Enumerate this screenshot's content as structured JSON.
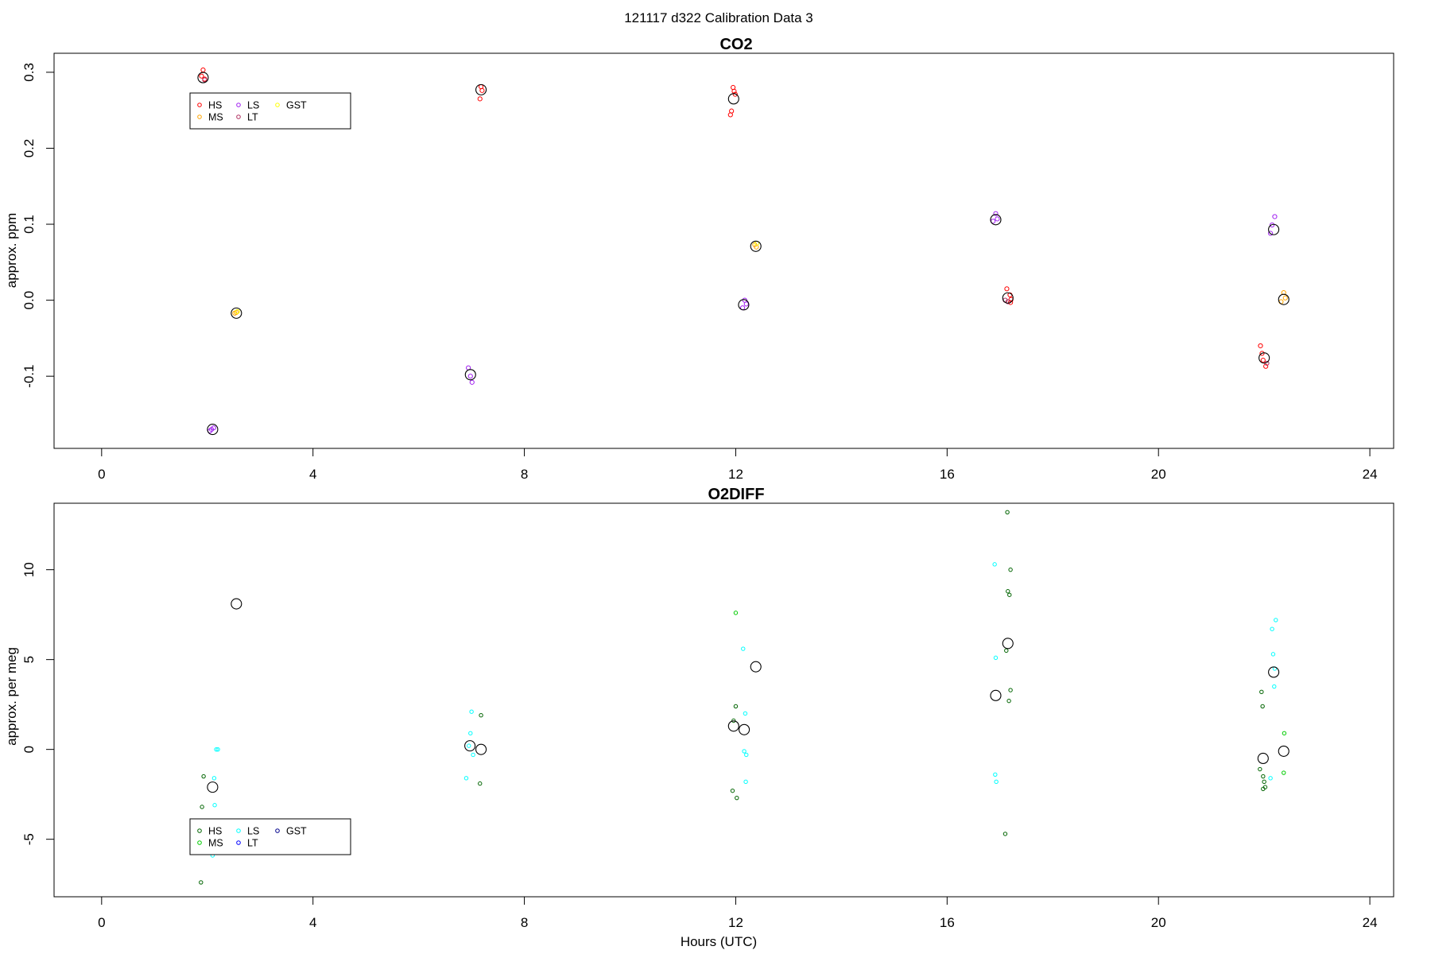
{
  "figure": {
    "main_title": "121117   d322   Calibration Data 3",
    "xlabel": "Hours (UTC)"
  },
  "chart_data": [
    {
      "type": "scatter",
      "title": "CO2",
      "xlabel": "",
      "ylabel": "approx. ppm",
      "xlim": [
        -0.9,
        24.45
      ],
      "ylim": [
        -0.195,
        0.325
      ],
      "xticks": [
        0,
        4,
        8,
        12,
        16,
        20,
        24
      ],
      "yticks": [
        -0.1,
        0.0,
        0.1,
        0.2,
        0.3
      ],
      "grid": false,
      "legend": {
        "placement": "top-left",
        "entries": [
          {
            "label": "HS",
            "color": "#ff0000"
          },
          {
            "label": "MS",
            "color": "#ffa500"
          },
          {
            "label": "LS",
            "color": "#a020f0"
          },
          {
            "label": "LT",
            "color": "#b03060"
          },
          {
            "label": "GST",
            "color": "#ffff00"
          }
        ]
      },
      "series": [
        {
          "name": "HS",
          "color": "#ff0000",
          "points": [
            [
              1.92,
              0.303
            ],
            [
              1.95,
              0.291
            ],
            [
              1.89,
              0.295
            ],
            [
              7.18,
              0.281
            ],
            [
              7.2,
              0.276
            ],
            [
              7.16,
              0.265
            ],
            [
              11.95,
              0.28
            ],
            [
              11.97,
              0.275
            ],
            [
              11.92,
              0.249
            ],
            [
              11.9,
              0.244
            ],
            [
              11.99,
              0.271
            ],
            [
              17.13,
              0.015
            ],
            [
              17.19,
              0.007
            ],
            [
              17.21,
              0.001
            ],
            [
              17.2,
              -0.003
            ],
            [
              21.93,
              -0.06
            ],
            [
              21.98,
              -0.079
            ],
            [
              22.03,
              -0.087
            ],
            [
              21.96,
              -0.07
            ]
          ]
        },
        {
          "name": "MS",
          "color": "#ffa500",
          "points": [
            [
              2.55,
              -0.016
            ],
            [
              2.52,
              -0.017
            ],
            [
              12.36,
              0.073
            ],
            [
              12.39,
              0.07
            ],
            [
              22.37,
              0.01
            ],
            [
              22.32,
              -0.002
            ],
            [
              22.4,
              0.003
            ]
          ]
        },
        {
          "name": "LS",
          "color": "#a020f0",
          "points": [
            [
              2.08,
              -0.17
            ],
            [
              2.12,
              -0.168
            ],
            [
              2.05,
              -0.172
            ],
            [
              6.94,
              -0.089
            ],
            [
              7.01,
              -0.108
            ],
            [
              6.98,
              -0.1
            ],
            [
              12.17,
              0.0
            ],
            [
              12.13,
              -0.01
            ],
            [
              12.2,
              -0.005
            ],
            [
              16.92,
              0.114
            ],
            [
              16.95,
              0.107
            ],
            [
              16.87,
              0.104
            ],
            [
              22.2,
              0.11
            ],
            [
              22.15,
              0.099
            ],
            [
              22.12,
              0.088
            ]
          ]
        },
        {
          "name": "LT",
          "color": "#b03060",
          "points": [
            [
              1.95,
              0.29
            ],
            [
              17.15,
              -0.002
            ],
            [
              17.1,
              0.0
            ],
            [
              22.05,
              -0.083
            ]
          ]
        },
        {
          "name": "GST",
          "color": "#ffff00",
          "points": [
            [
              2.57,
              -0.015
            ],
            [
              12.4,
              0.075
            ]
          ]
        }
      ],
      "means": [
        [
          1.92,
          0.293
        ],
        [
          2.1,
          -0.17
        ],
        [
          2.55,
          -0.017
        ],
        [
          6.98,
          -0.098
        ],
        [
          7.18,
          0.277
        ],
        [
          11.96,
          0.265
        ],
        [
          12.15,
          -0.006
        ],
        [
          12.38,
          0.071
        ],
        [
          16.92,
          0.106
        ],
        [
          17.15,
          0.003
        ],
        [
          22.0,
          -0.076
        ],
        [
          22.18,
          0.093
        ],
        [
          22.37,
          0.001
        ]
      ]
    },
    {
      "type": "scatter",
      "title": "O2DIFF",
      "xlabel": "Hours (UTC)",
      "ylabel": "approx. per meg",
      "xlim": [
        -0.9,
        24.45
      ],
      "ylim": [
        -8.2,
        13.7
      ],
      "xticks": [
        0,
        4,
        8,
        12,
        16,
        20,
        24
      ],
      "yticks": [
        -5,
        0,
        5,
        10
      ],
      "grid": false,
      "legend": {
        "placement": "bottom-left",
        "entries": [
          {
            "label": "HS",
            "color": "#006400"
          },
          {
            "label": "MS",
            "color": "#00cc00"
          },
          {
            "label": "LS",
            "color": "#00ffff"
          },
          {
            "label": "LT",
            "color": "#0000ff"
          },
          {
            "label": "GST",
            "color": "#00008b"
          }
        ]
      },
      "series": [
        {
          "name": "HS",
          "color": "#006400",
          "points": [
            [
              1.93,
              -1.5
            ],
            [
              1.9,
              -3.2
            ],
            [
              1.88,
              -7.4
            ],
            [
              7.18,
              1.9
            ],
            [
              7.16,
              -1.9
            ],
            [
              12.0,
              2.4
            ],
            [
              11.94,
              -2.3
            ],
            [
              12.02,
              -2.7
            ],
            [
              11.96,
              1.6
            ],
            [
              17.14,
              13.2
            ],
            [
              17.2,
              10.0
            ],
            [
              17.15,
              8.8
            ],
            [
              17.18,
              8.6
            ],
            [
              17.12,
              5.5
            ],
            [
              17.2,
              3.3
            ],
            [
              17.17,
              2.7
            ],
            [
              17.1,
              -4.7
            ],
            [
              21.95,
              3.2
            ],
            [
              21.97,
              2.4
            ],
            [
              21.92,
              -1.1
            ],
            [
              21.98,
              -1.5
            ],
            [
              22.0,
              -1.8
            ],
            [
              22.02,
              -2.1
            ],
            [
              21.98,
              -2.2
            ]
          ]
        },
        {
          "name": "MS",
          "color": "#00cc00",
          "points": [
            [
              12.0,
              7.6
            ],
            [
              22.38,
              0.9
            ],
            [
              22.37,
              -1.3
            ]
          ]
        },
        {
          "name": "LS",
          "color": "#00ffff",
          "points": [
            [
              2.13,
              -1.6
            ],
            [
              2.17,
              0.0
            ],
            [
              2.14,
              -3.1
            ],
            [
              2.1,
              -5.9
            ],
            [
              2.2,
              0.0
            ],
            [
              6.95,
              0.2
            ],
            [
              7.0,
              2.1
            ],
            [
              6.98,
              0.9
            ],
            [
              7.03,
              -0.3
            ],
            [
              6.9,
              -1.6
            ],
            [
              12.14,
              5.6
            ],
            [
              12.18,
              2.0
            ],
            [
              12.16,
              -0.1
            ],
            [
              12.2,
              -0.3
            ],
            [
              12.19,
              -1.8
            ],
            [
              16.9,
              10.3
            ],
            [
              16.92,
              5.1
            ],
            [
              16.91,
              -1.4
            ],
            [
              16.93,
              -1.8
            ],
            [
              22.22,
              7.2
            ],
            [
              22.15,
              6.7
            ],
            [
              22.17,
              5.3
            ],
            [
              22.2,
              4.5
            ],
            [
              22.19,
              3.5
            ],
            [
              22.12,
              -1.6
            ]
          ]
        },
        {
          "name": "LT",
          "color": "#0000ff",
          "points": []
        },
        {
          "name": "GST",
          "color": "#00008b",
          "points": []
        }
      ],
      "means": [
        [
          2.1,
          -2.1
        ],
        [
          2.55,
          8.1
        ],
        [
          6.97,
          0.2
        ],
        [
          7.18,
          0.0
        ],
        [
          11.96,
          1.3
        ],
        [
          12.16,
          1.1
        ],
        [
          12.38,
          4.6
        ],
        [
          16.92,
          3.0
        ],
        [
          17.15,
          5.9
        ],
        [
          21.98,
          -0.5
        ],
        [
          22.18,
          4.3
        ],
        [
          22.37,
          -0.1
        ]
      ]
    }
  ]
}
